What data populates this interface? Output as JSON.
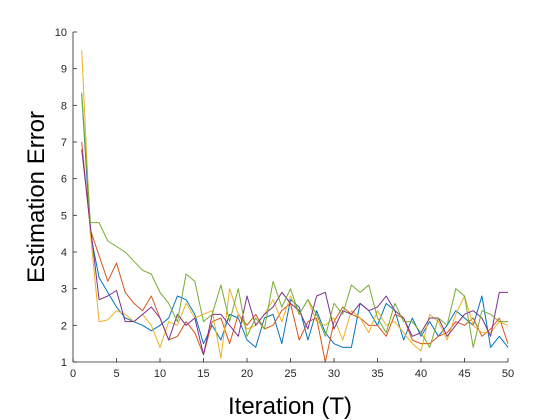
{
  "chart_data": {
    "type": "line",
    "title": "",
    "xlabel": "Iteration (T)",
    "ylabel": "Estimation Error",
    "xlim": [
      0,
      50
    ],
    "ylim": [
      1,
      10
    ],
    "xticks": [
      0,
      5,
      10,
      15,
      20,
      25,
      30,
      35,
      40,
      45,
      50
    ],
    "yticks": [
      1,
      2,
      3,
      4,
      5,
      6,
      7,
      8,
      9,
      10
    ],
    "grid": false,
    "legend": "none",
    "x": [
      1,
      2,
      3,
      4,
      5,
      6,
      7,
      8,
      9,
      10,
      11,
      12,
      13,
      14,
      15,
      16,
      17,
      18,
      19,
      20,
      21,
      22,
      23,
      24,
      25,
      26,
      27,
      28,
      29,
      30,
      31,
      32,
      33,
      34,
      35,
      36,
      37,
      38,
      39,
      40,
      41,
      42,
      43,
      44,
      45,
      46,
      47,
      48,
      49,
      50
    ],
    "series": [
      {
        "color": "#0072BD",
        "values": [
          8.3,
          4.5,
          3.3,
          2.9,
          2.5,
          2.2,
          2.1,
          2.0,
          1.85,
          2.0,
          2.2,
          2.8,
          2.7,
          2.3,
          1.5,
          2.0,
          1.6,
          2.3,
          2.2,
          1.6,
          1.4,
          2.2,
          2.3,
          1.5,
          2.7,
          2.5,
          1.6,
          2.4,
          1.8,
          1.5,
          1.4,
          1.4,
          2.6,
          2.4,
          2.0,
          2.6,
          2.4,
          1.6,
          2.2,
          1.7,
          2.1,
          1.7,
          2.0,
          2.4,
          2.2,
          2.0,
          2.8,
          1.4,
          1.7,
          1.4
        ]
      },
      {
        "color": "#D95319",
        "values": [
          7.0,
          4.6,
          3.9,
          3.2,
          3.7,
          2.9,
          2.6,
          2.4,
          2.8,
          2.2,
          1.6,
          1.7,
          2.1,
          1.8,
          1.2,
          2.1,
          2.2,
          1.5,
          2.3,
          2.0,
          2.3,
          1.9,
          2.0,
          2.4,
          2.6,
          1.6,
          2.1,
          2.2,
          1.0,
          2.1,
          2.5,
          2.3,
          2.2,
          2.0,
          2.0,
          1.7,
          2.3,
          2.2,
          1.6,
          1.5,
          1.5,
          1.7,
          1.8,
          2.1,
          2.0,
          2.2,
          1.7,
          1.9,
          2.2,
          1.5
        ]
      },
      {
        "color": "#EDB120",
        "values": [
          9.5,
          4.5,
          2.1,
          2.15,
          2.4,
          2.3,
          2.1,
          2.3,
          2.0,
          1.4,
          2.1,
          2.0,
          2.6,
          2.2,
          2.3,
          2.4,
          1.1,
          3.0,
          2.3,
          1.9,
          2.0,
          2.3,
          2.7,
          2.1,
          2.8,
          2.3,
          2.7,
          2.1,
          2.0,
          2.2,
          1.6,
          2.4,
          2.2,
          1.8,
          2.4,
          2.0,
          2.1,
          1.8,
          1.5,
          1.3,
          2.3,
          2.1,
          1.6,
          2.3,
          2.8,
          2.0,
          1.8,
          1.8,
          2.1,
          2.0
        ]
      },
      {
        "color": "#7E2F8E",
        "values": [
          6.8,
          4.7,
          2.7,
          2.8,
          2.95,
          2.1,
          2.1,
          2.3,
          2.5,
          2.2,
          1.6,
          2.3,
          2.0,
          2.2,
          1.2,
          2.3,
          2.3,
          2.0,
          1.7,
          2.8,
          2.0,
          2.3,
          2.5,
          2.9,
          2.6,
          2.4,
          1.9,
          2.8,
          2.9,
          1.9,
          2.4,
          2.3,
          2.6,
          2.4,
          2.5,
          2.8,
          2.4,
          2.2,
          1.7,
          1.8,
          2.2,
          2.2,
          1.7,
          2.0,
          2.3,
          2.4,
          2.2,
          1.7,
          2.9,
          2.9
        ]
      },
      {
        "color": "#77AC30",
        "values": [
          8.35,
          4.8,
          4.8,
          4.3,
          4.15,
          4.0,
          3.75,
          3.5,
          3.4,
          2.9,
          2.6,
          2.1,
          3.4,
          3.2,
          2.1,
          2.3,
          3.1,
          2.1,
          3.0,
          1.7,
          2.2,
          1.9,
          3.2,
          2.5,
          3.0,
          2.3,
          2.7,
          2.3,
          1.7,
          2.6,
          2.3,
          3.1,
          2.9,
          3.1,
          2.2,
          1.8,
          2.6,
          2.1,
          2.1,
          1.8,
          1.4,
          2.2,
          2.0,
          3.0,
          2.8,
          1.4,
          2.4,
          2.3,
          2.1,
          2.1
        ]
      }
    ]
  }
}
